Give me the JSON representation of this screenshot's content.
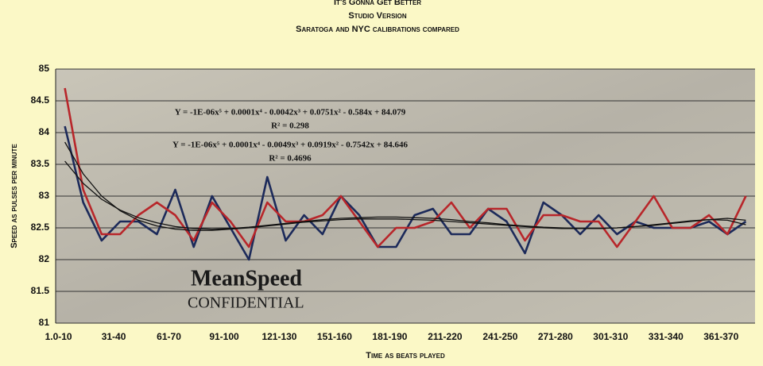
{
  "chart_data": {
    "type": "line",
    "title": "It's Gonna Get Better",
    "subtitle": "Studio Version",
    "subtitle2": "Saratoga and NYC calibrations compared",
    "x_label": "Time as beats played",
    "y_label": "Speed as pulses per minute",
    "watermark": "MeanSpeed",
    "watermark2": "CONFIDENTIAL",
    "annotations": [
      "Y = -1E-06x⁵ + 0.0001x⁴ - 0.0042x³ + 0.0751x² - 0.584x + 84.079",
      "R² = 0.298",
      "Y = -1E-06x⁵ + 0.0001x⁴ - 0.0049x³ + 0.0919x² - 0.7542x + 84.646",
      "R² = 0.4696"
    ],
    "categories": [
      "1.0-10",
      null,
      null,
      "31-40",
      null,
      null,
      "61-70",
      null,
      null,
      "91-100",
      null,
      null,
      "121-130",
      null,
      null,
      "151-160",
      null,
      null,
      "181-190",
      null,
      null,
      "211-220",
      null,
      null,
      "241-250",
      null,
      null,
      "271-280",
      null,
      null,
      "301-310",
      null,
      null,
      "331-340",
      null,
      null,
      "361-370",
      null
    ],
    "series": [
      {
        "color": "#1c2a5a",
        "values": [
          84.1,
          82.9,
          82.3,
          82.6,
          82.6,
          82.4,
          83.1,
          82.2,
          83.0,
          82.5,
          82.0,
          83.3,
          82.3,
          82.7,
          82.4,
          83.0,
          82.7,
          82.2,
          82.2,
          82.7,
          82.8,
          82.4,
          82.4,
          82.8,
          82.6,
          82.1,
          82.9,
          82.7,
          82.4,
          82.7,
          82.4,
          82.6,
          82.5,
          82.5,
          82.5,
          82.6,
          82.4,
          82.6
        ]
      },
      {
        "color": "#b8262a",
        "values": [
          84.7,
          83.1,
          82.4,
          82.4,
          82.7,
          82.9,
          82.7,
          82.3,
          82.9,
          82.6,
          82.2,
          82.9,
          82.6,
          82.6,
          82.7,
          83.0,
          82.6,
          82.2,
          82.5,
          82.5,
          82.6,
          82.9,
          82.5,
          82.8,
          82.8,
          82.3,
          82.7,
          82.7,
          82.6,
          82.6,
          82.2,
          82.6,
          83.0,
          82.5,
          82.5,
          82.7,
          82.4,
          83.0
        ]
      }
    ],
    "trendlines": [
      {
        "color": "#111111",
        "values": [
          83.55,
          83.2,
          82.95,
          82.78,
          82.66,
          82.58,
          82.52,
          82.49,
          82.48,
          82.49,
          82.51,
          82.54,
          82.57,
          82.6,
          82.63,
          82.65,
          82.66,
          82.67,
          82.67,
          82.66,
          82.65,
          82.63,
          82.6,
          82.58,
          82.55,
          82.53,
          82.51,
          82.5,
          82.49,
          82.49,
          82.5,
          82.52,
          82.54,
          82.57,
          82.6,
          82.63,
          82.65,
          82.62
        ]
      },
      {
        "color": "#111111",
        "values": [
          83.85,
          83.35,
          83.0,
          82.77,
          82.62,
          82.53,
          82.48,
          82.46,
          82.46,
          82.48,
          82.5,
          82.53,
          82.56,
          82.59,
          82.61,
          82.63,
          82.64,
          82.64,
          82.64,
          82.63,
          82.62,
          82.6,
          82.58,
          82.56,
          82.54,
          82.52,
          82.5,
          82.49,
          82.49,
          82.49,
          82.5,
          82.52,
          82.55,
          82.58,
          82.61,
          82.63,
          82.62,
          82.55
        ]
      }
    ],
    "ylim": [
      81,
      85
    ],
    "yticks": [
      81,
      81.5,
      82,
      82.5,
      83,
      83.5,
      84,
      84.5,
      85
    ],
    "grid": true
  }
}
